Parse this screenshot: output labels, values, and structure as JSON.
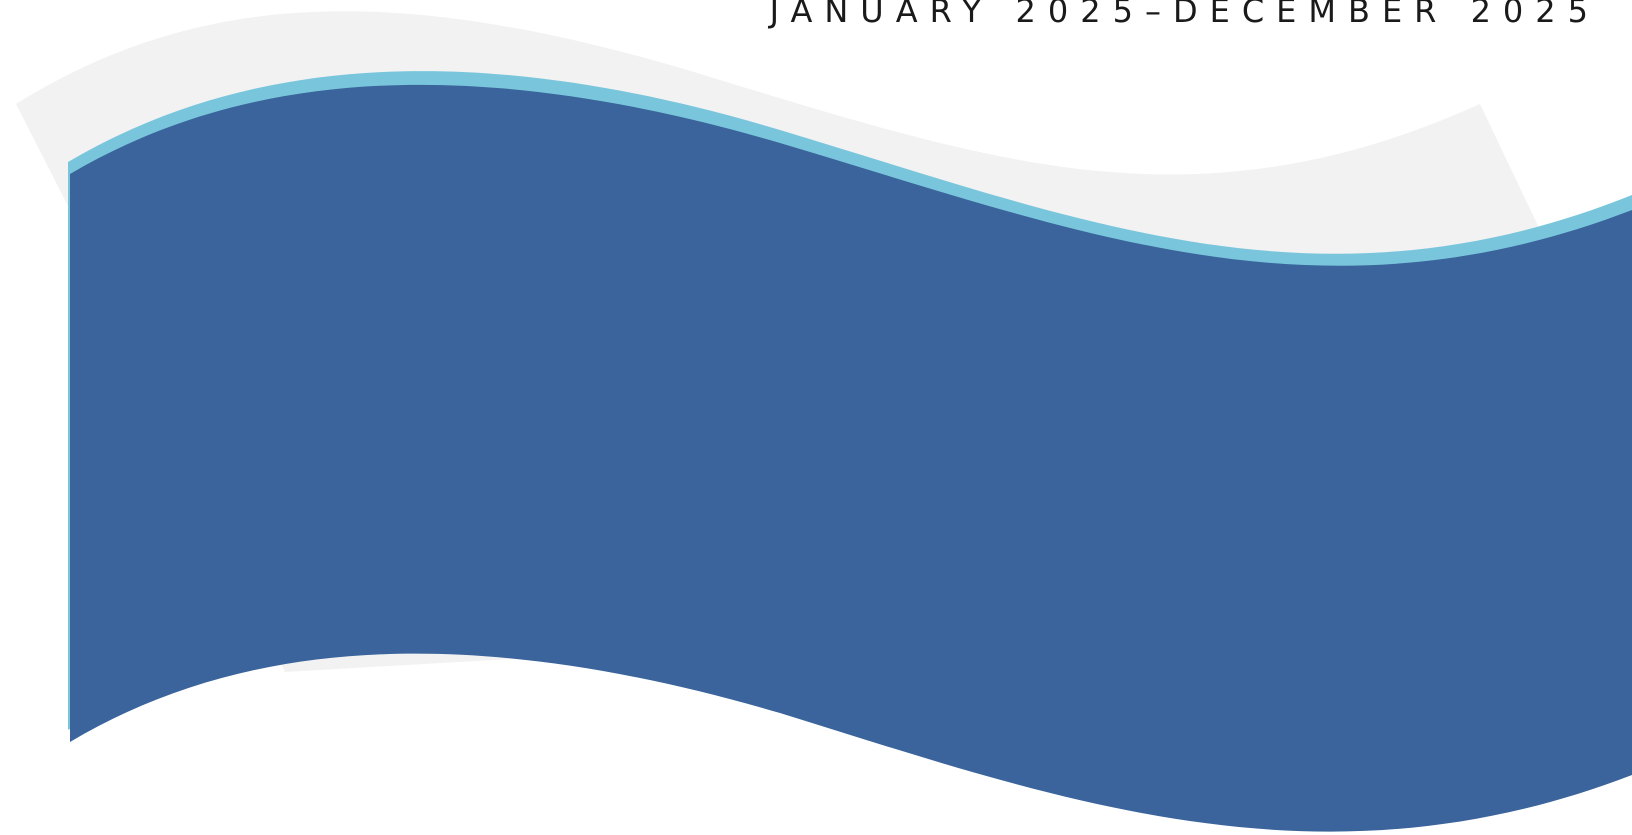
{
  "header": {
    "date_range": "JANUARY 2025–DECEMBER 2025"
  }
}
